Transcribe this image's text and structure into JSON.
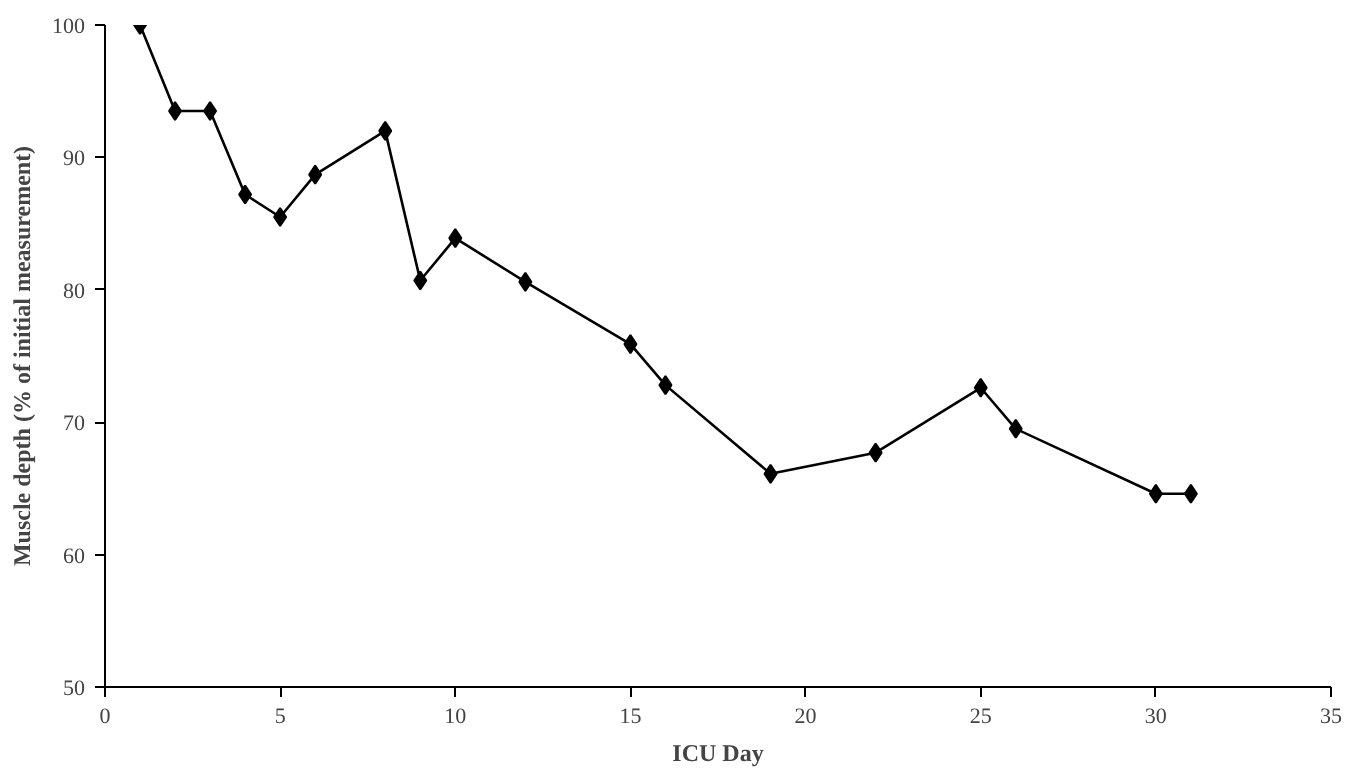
{
  "chart_data": {
    "type": "line",
    "xlabel": "ICU Day",
    "ylabel": "Muscle depth (% of initial measurement)",
    "x": [
      1,
      2,
      3,
      4,
      5,
      6,
      8,
      9,
      10,
      12,
      15,
      16,
      19,
      22,
      25,
      26,
      30,
      31
    ],
    "series": [
      {
        "color": "#000000",
        "values": [
          100,
          93.5,
          93.5,
          87.2,
          85.5,
          88.7,
          92,
          80.7,
          83.9,
          80.6,
          75.9,
          72.8,
          66.1,
          67.7,
          72.6,
          69.5,
          64.6,
          64.6
        ]
      }
    ],
    "xlim": [
      0,
      35
    ],
    "xticks": [
      0,
      5,
      10,
      15,
      20,
      25,
      30,
      35
    ],
    "ylim": [
      50,
      100
    ],
    "yticks": [
      50,
      60,
      70,
      80,
      90,
      100
    ],
    "grid": false,
    "marker": "diamond",
    "line_style": "solid"
  }
}
